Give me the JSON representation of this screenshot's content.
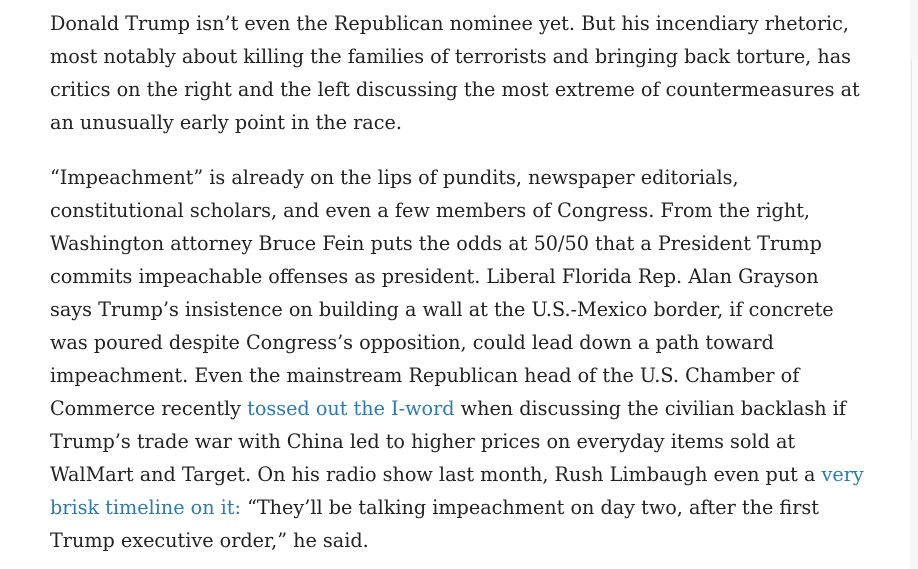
{
  "article": {
    "p1": [
      "Donald Trump isn’t even the Republican nominee yet. But his incendiary rhetoric,",
      "most notably about killing the families of terrorists and bringing back torture, has",
      "critics on the right and the left discussing the most extreme of countermeasures at",
      "an unusually early point in the race."
    ],
    "p2": {
      "lines": [
        "“Impeachment” is already on the lips of pundits, newspaper editorials,",
        "constitutional scholars, and even a few members of Congress. From the right,",
        "Washington attorney Bruce Fein puts the odds at 50/50 that a President Trump",
        "commits impeachable offenses as president. Liberal Florida Rep. Alan Grayson",
        "says Trump’s insistence on building a wall at the U.S.-Mexico border, if concrete",
        "was poured despite Congress’s opposition, could lead down a path toward",
        "impeachment. Even the mainstream Republican head of the U.S. Chamber of"
      ],
      "line8_before": "Commerce recently ",
      "link1": "tossed out the I-word",
      "line8_after": " when discussing the civilian backlash if",
      "line9": "Trump’s trade war with China led to higher prices on everyday items sold at",
      "line10_before": "WalMart and Target. On his radio show last month, Rush Limbaugh even put a ",
      "link2_part1": "very",
      "link2_part2": "brisk timeline on it:",
      "line11_after": " “They’ll be talking impeachment on day two, after the first",
      "line12": "Trump executive order,” he said."
    }
  },
  "colors": {
    "text": "#222222",
    "link": "#2f7aa8",
    "background": "#ffffff"
  }
}
